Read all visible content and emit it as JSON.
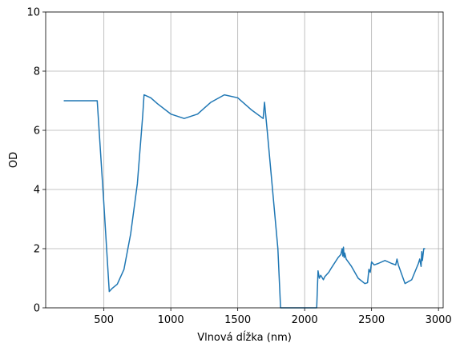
{
  "chart_data": {
    "type": "line",
    "xlabel": "Vlnová dĺžka (nm)",
    "ylabel": "OD",
    "x": [
      200,
      300,
      400,
      450,
      500,
      540,
      560,
      600,
      650,
      700,
      750,
      790,
      800,
      850,
      900,
      1000,
      1100,
      1200,
      1300,
      1400,
      1500,
      1600,
      1690,
      1700,
      1720,
      1800,
      1820,
      2000,
      2090,
      2100,
      2110,
      2120,
      2140,
      2150,
      2180,
      2200,
      2250,
      2270,
      2280,
      2285,
      2290,
      2295,
      2300,
      2310,
      2350,
      2400,
      2450,
      2470,
      2480,
      2490,
      2500,
      2520,
      2550,
      2600,
      2650,
      2680,
      2690,
      2700,
      2750,
      2800,
      2850,
      2860,
      2870,
      2875,
      2880,
      2890,
      2900
    ],
    "values": [
      7.0,
      7.0,
      7.0,
      7.0,
      3.5,
      0.55,
      0.65,
      0.8,
      1.3,
      2.5,
      4.2,
      6.5,
      7.2,
      7.1,
      6.9,
      6.55,
      6.4,
      6.55,
      6.95,
      7.2,
      7.1,
      6.7,
      6.4,
      6.95,
      6.0,
      2.0,
      0.0,
      0.0,
      0.0,
      1.25,
      1.0,
      1.1,
      0.95,
      1.05,
      1.2,
      1.35,
      1.7,
      1.8,
      2.0,
      1.75,
      2.05,
      1.7,
      1.85,
      1.65,
      1.4,
      1.0,
      0.82,
      0.85,
      1.3,
      1.2,
      1.55,
      1.45,
      1.5,
      1.6,
      1.5,
      1.45,
      1.65,
      1.45,
      0.82,
      0.95,
      1.5,
      1.65,
      1.4,
      1.9,
      1.6,
      2.0,
      2.0
    ],
    "color": "#1f77b4",
    "xlim": [
      65,
      3035
    ],
    "ylim": [
      0,
      10
    ],
    "xticks": [
      500,
      1000,
      1500,
      2000,
      2500,
      3000
    ],
    "yticks": [
      0,
      2,
      4,
      6,
      8,
      10
    ],
    "grid": true
  }
}
